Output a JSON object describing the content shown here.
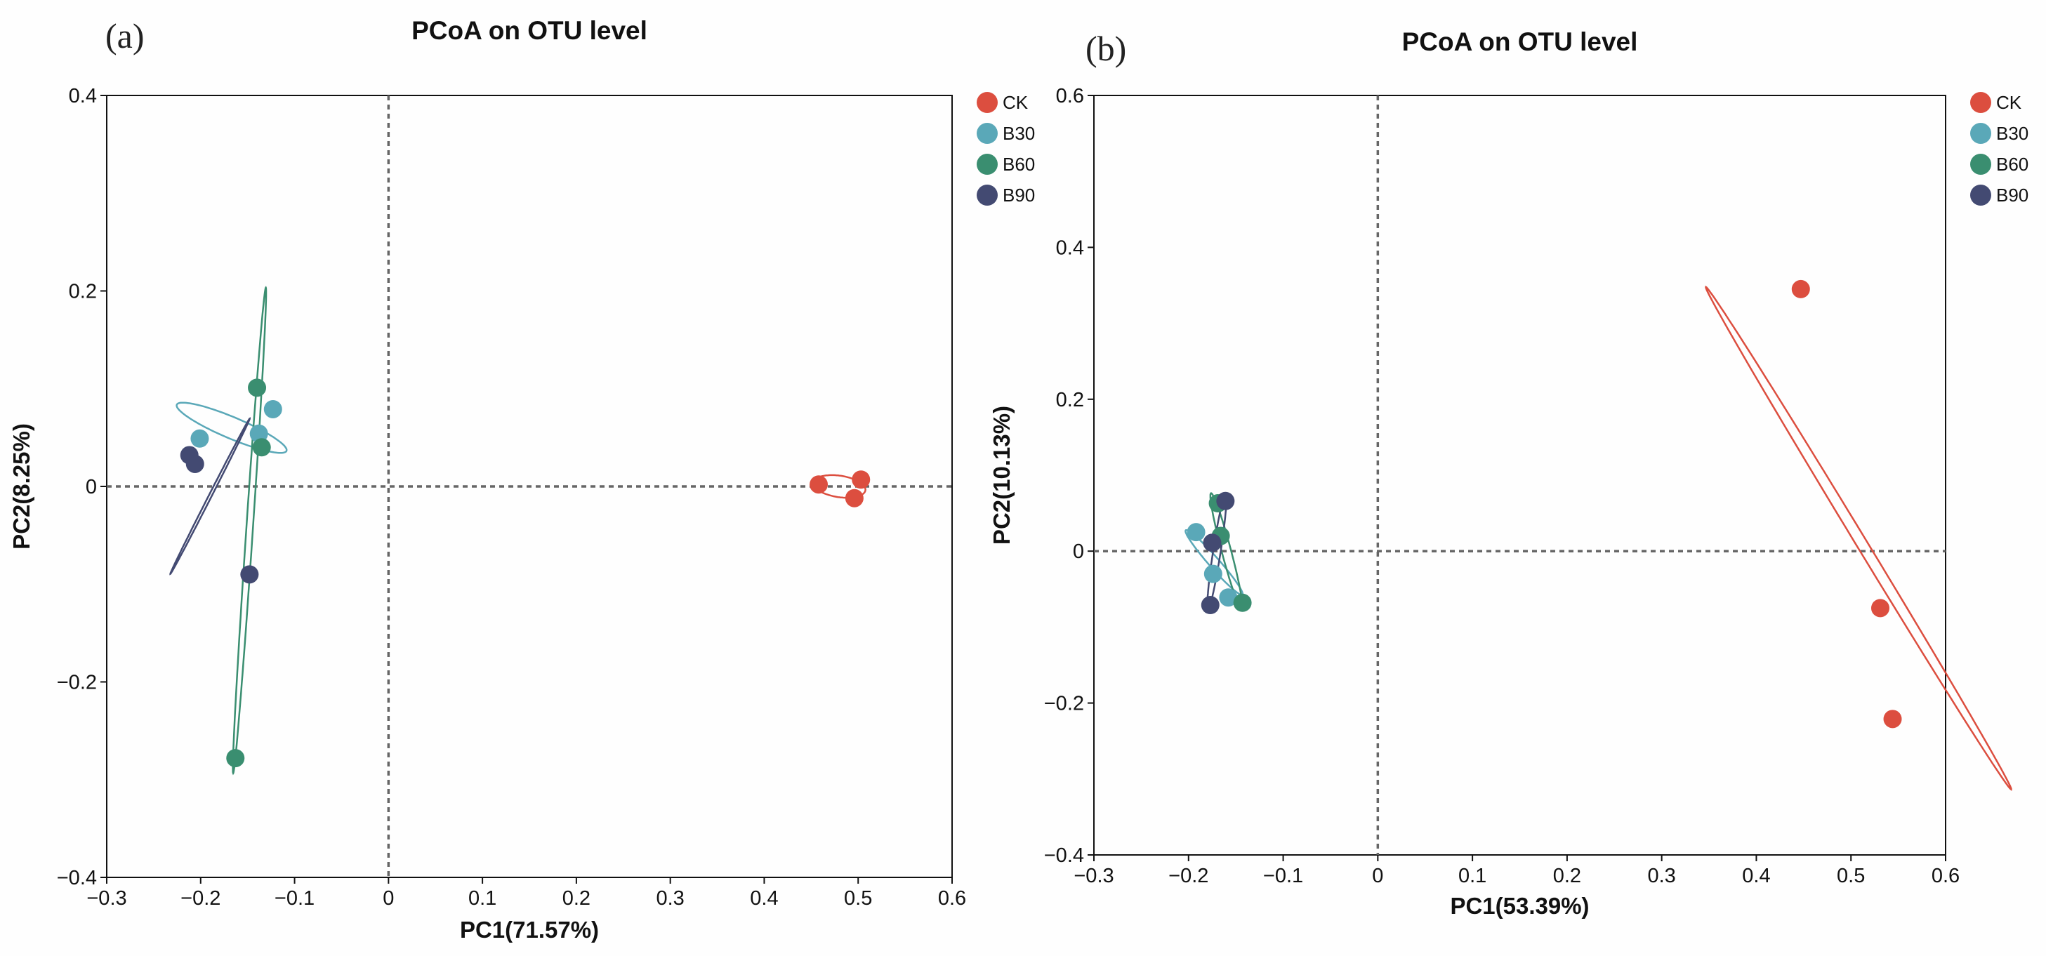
{
  "colors": {
    "CK": "#dc4e3f",
    "B30": "#5aa8b8",
    "B60": "#3a8e70",
    "B90": "#434a72"
  },
  "chart_data": [
    {
      "type": "scatter",
      "panel_label": "(a)",
      "title": "PCoA on OTU level",
      "xlabel": "PC1(71.57%)",
      "ylabel": "PC2(8.25%)",
      "xlim": [
        -0.3,
        0.6
      ],
      "ylim": [
        -0.4,
        0.4
      ],
      "xticks": [
        -0.3,
        -0.2,
        -0.1,
        0,
        0.1,
        0.2,
        0.3,
        0.4,
        0.5,
        0.6
      ],
      "yticks": [
        -0.4,
        -0.2,
        0,
        0.2,
        0.4
      ],
      "xtick_labels": [
        "−0.3",
        "−0.2",
        "−0.1",
        "0",
        "0.1",
        "0.2",
        "0.3",
        "0.4",
        "0.5",
        "0.6"
      ],
      "ytick_labels": [
        "−0.4",
        "−0.2",
        "0",
        "0.2",
        "0.4"
      ],
      "reference_lines": {
        "x": 0,
        "y": 0
      },
      "legend_position": "right",
      "series": [
        {
          "name": "CK",
          "points": [
            [
              0.458,
              0.002
            ],
            [
              0.503,
              0.007
            ],
            [
              0.496,
              -0.012
            ]
          ],
          "ellipse": {
            "cx": 0.48,
            "cy": 0.0,
            "rx": 0.028,
            "ry": 0.011,
            "angle": -8
          }
        },
        {
          "name": "B30",
          "points": [
            [
              -0.201,
              0.049
            ],
            [
              -0.138,
              0.054
            ],
            [
              -0.123,
              0.079
            ]
          ],
          "ellipse": {
            "cx": -0.167,
            "cy": 0.06,
            "rx": 0.063,
            "ry": 0.011,
            "angle": -22
          }
        },
        {
          "name": "B60",
          "points": [
            [
              -0.14,
              0.101
            ],
            [
              -0.135,
              0.04
            ],
            [
              -0.163,
              -0.278
            ]
          ],
          "ellipse": {
            "cx": -0.148,
            "cy": -0.045,
            "rx": 0.249,
            "ry": 0.0035,
            "angle": 86
          }
        },
        {
          "name": "B90",
          "points": [
            [
              -0.212,
              0.032
            ],
            [
              -0.206,
              0.023
            ],
            [
              -0.148,
              -0.09
            ]
          ],
          "ellipse": {
            "cx": -0.19,
            "cy": -0.01,
            "rx": 0.09,
            "ry": 0.0015,
            "angle": 62
          }
        }
      ]
    },
    {
      "type": "scatter",
      "panel_label": "(b)",
      "title": "PCoA on OTU level",
      "xlabel": "PC1(53.39%)",
      "ylabel": "PC2(10.13%)",
      "xlim": [
        -0.3,
        0.6
      ],
      "ylim": [
        -0.4,
        0.6
      ],
      "xticks": [
        -0.3,
        -0.2,
        -0.1,
        0,
        0.1,
        0.2,
        0.3,
        0.4,
        0.5,
        0.6
      ],
      "yticks": [
        -0.4,
        -0.2,
        0,
        0.2,
        0.4,
        0.6
      ],
      "xtick_labels": [
        "−0.3",
        "−0.2",
        "−0.1",
        "0",
        "0.1",
        "0.2",
        "0.3",
        "0.4",
        "0.5",
        "0.6"
      ],
      "ytick_labels": [
        "−0.4",
        "−0.2",
        "0",
        "0.2",
        "0.4",
        "0.6"
      ],
      "reference_lines": {
        "x": 0,
        "y": 0
      },
      "legend_position": "right",
      "series": [
        {
          "name": "CK",
          "points": [
            [
              0.447,
              0.345
            ],
            [
              0.531,
              -0.075
            ],
            [
              0.544,
              -0.221
            ]
          ],
          "ellipse": {
            "cx": 0.508,
            "cy": 0.017,
            "rx": 0.368,
            "ry": 0.006,
            "angle": -64
          }
        },
        {
          "name": "B30",
          "points": [
            [
              -0.192,
              0.025
            ],
            [
              -0.174,
              -0.03
            ],
            [
              -0.158,
              -0.061
            ]
          ],
          "ellipse": {
            "cx": -0.173,
            "cy": -0.015,
            "rx": 0.052,
            "ry": 0.006,
            "angle": -55
          }
        },
        {
          "name": "B60",
          "points": [
            [
              -0.169,
              0.063
            ],
            [
              -0.166,
              0.02
            ],
            [
              -0.143,
              -0.068
            ]
          ],
          "ellipse": {
            "cx": -0.16,
            "cy": 0.0,
            "rx": 0.078,
            "ry": 0.005,
            "angle": -78
          }
        },
        {
          "name": "B90",
          "points": [
            [
              -0.161,
              0.066
            ],
            [
              -0.175,
              0.011
            ],
            [
              -0.177,
              -0.071
            ]
          ],
          "ellipse": {
            "cx": -0.17,
            "cy": 0.0,
            "rx": 0.076,
            "ry": 0.004,
            "angle": 83
          }
        }
      ]
    }
  ]
}
